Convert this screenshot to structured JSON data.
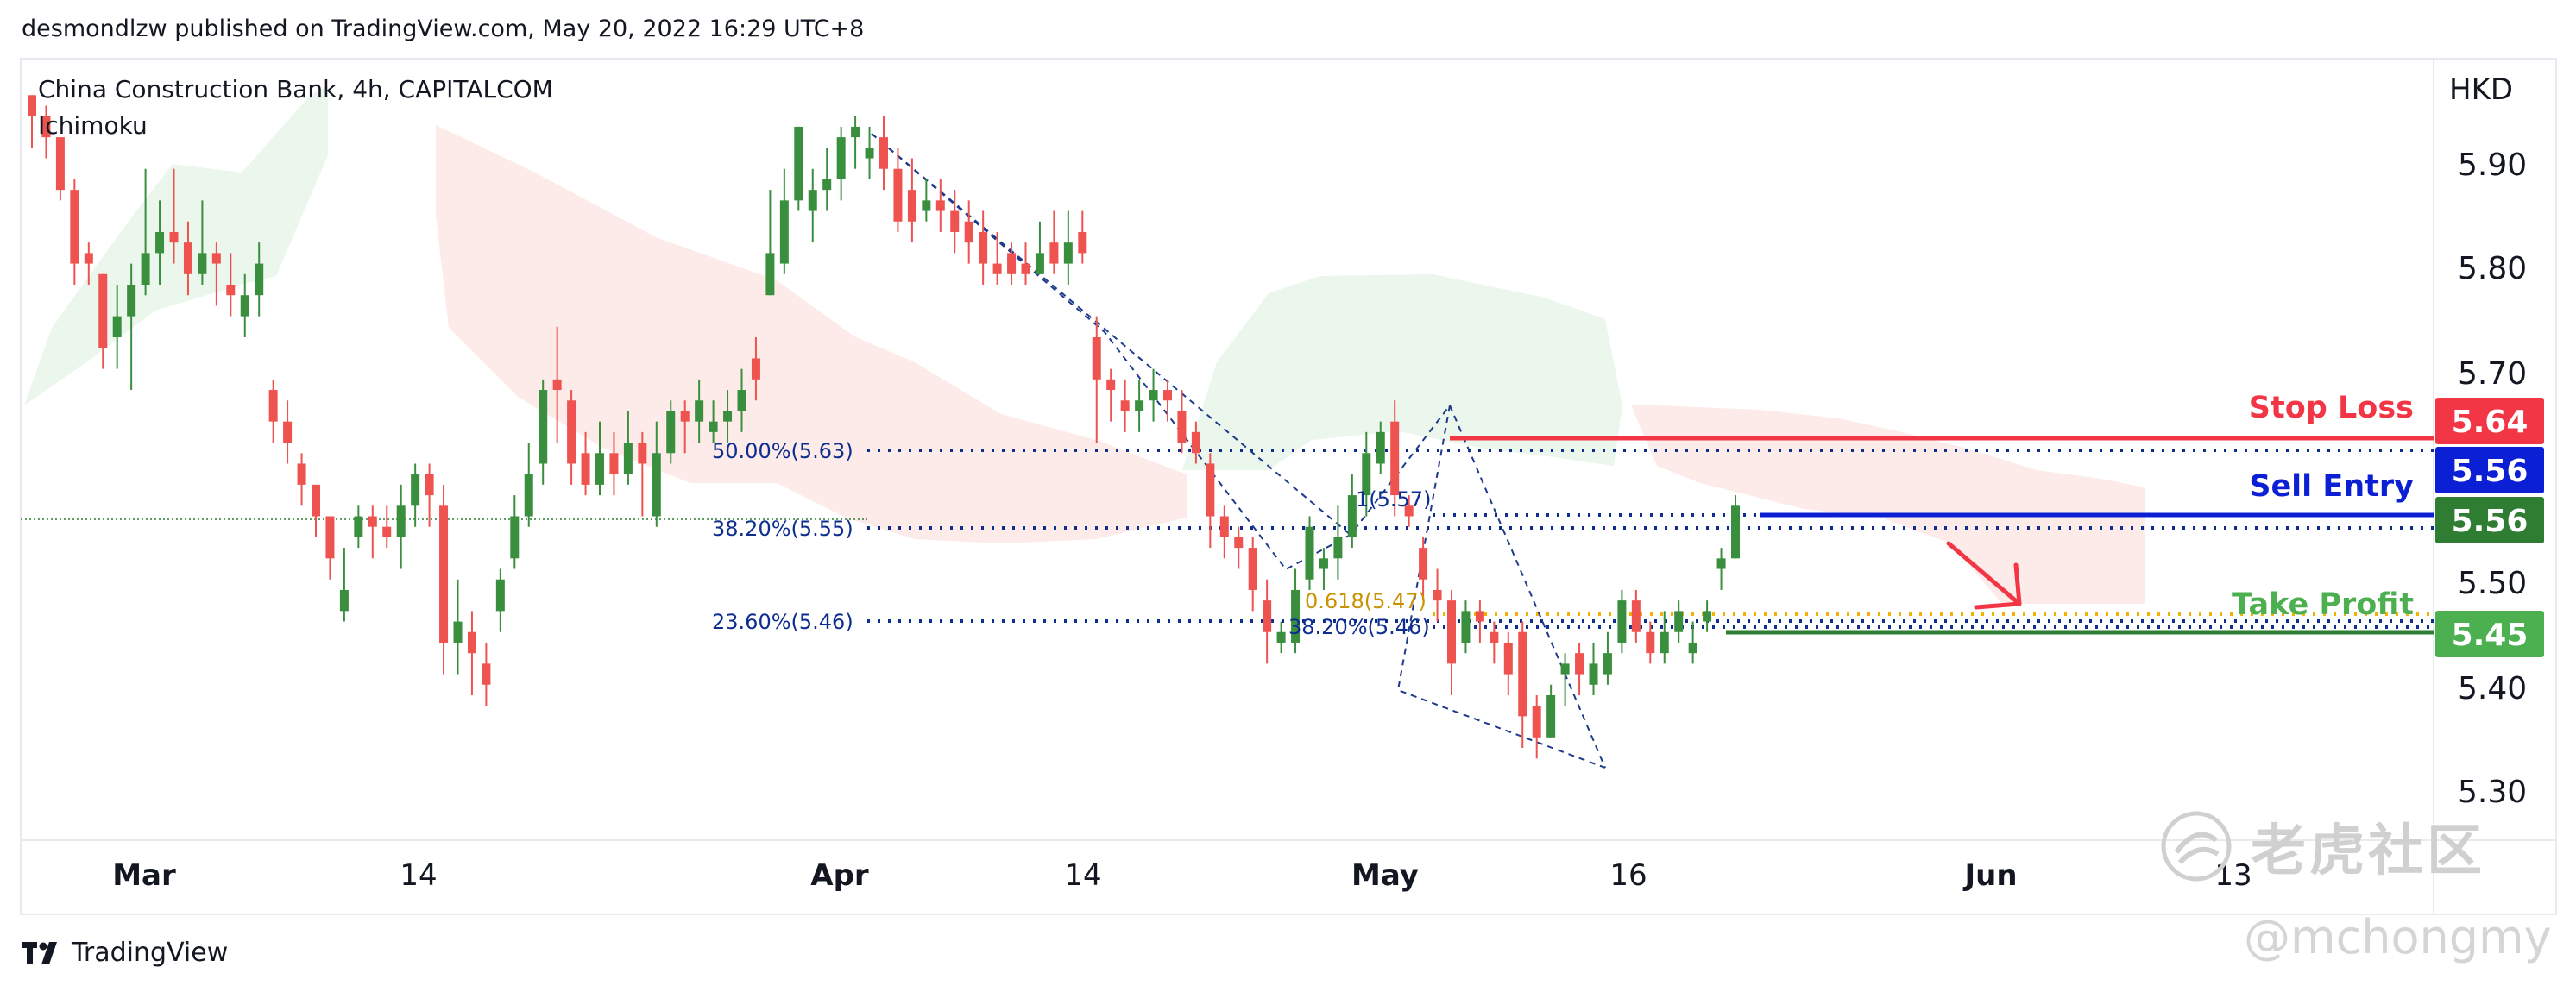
{
  "header": {
    "publisher_line": "desmondlzw published on TradingView.com, May 20, 2022 16:29 UTC+8"
  },
  "footer": {
    "brand": "TradingView"
  },
  "watermark": {
    "brand": "老虎社区",
    "handle": "@mchongmy"
  },
  "chart_data": {
    "type": "candlestick",
    "title": "China Construction Bank, 4h, CAPITALCOM",
    "indicator": "Ichimoku",
    "currency": "HKD",
    "ylim": [
      5.262,
      5.965
    ],
    "x_ticks": [
      "Mar",
      "14",
      "Apr",
      "14",
      "May",
      "16",
      "Jun",
      "13"
    ],
    "y_ticks": [
      "5.90",
      "5.80",
      "5.70",
      "5.50",
      "5.40",
      "5.30"
    ],
    "levels": {
      "stop_loss": {
        "label": "Stop Loss",
        "value": "5.64",
        "color": "#f23645"
      },
      "sell_entry": {
        "label": "Sell Entry",
        "value": "5.56",
        "color": "#0b1fd4"
      },
      "last_price": {
        "value": "5.56",
        "color": "#2e7d32"
      },
      "take_profit": {
        "label": "Take Profit",
        "value": "5.45",
        "color": "#4caf50"
      }
    },
    "fib_labels": [
      {
        "text": "50.00%(5.63)",
        "price": 5.63
      },
      {
        "text": "38.20%(5.55)",
        "price": 5.55
      },
      {
        "text": "23.60%(5.46)",
        "price": 5.46
      },
      {
        "text": "1(5.57)",
        "price": 5.57
      },
      {
        "text": "0.618(5.47)",
        "price": 5.47
      },
      {
        "text": "38.20%(5.46)",
        "price": 5.46
      }
    ],
    "candles": [
      [
        5.95,
        5.93,
        5.95,
        5.9
      ],
      [
        5.93,
        5.91,
        5.94,
        5.89
      ],
      [
        5.91,
        5.86,
        5.91,
        5.85
      ],
      [
        5.86,
        5.79,
        5.87,
        5.77
      ],
      [
        5.8,
        5.79,
        5.81,
        5.77
      ],
      [
        5.78,
        5.71,
        5.78,
        5.69
      ],
      [
        5.72,
        5.74,
        5.77,
        5.69
      ],
      [
        5.74,
        5.77,
        5.79,
        5.67
      ],
      [
        5.77,
        5.8,
        5.88,
        5.76
      ],
      [
        5.8,
        5.82,
        5.85,
        5.77
      ],
      [
        5.82,
        5.81,
        5.88,
        5.79
      ],
      [
        5.81,
        5.78,
        5.83,
        5.76
      ],
      [
        5.78,
        5.8,
        5.85,
        5.77
      ],
      [
        5.8,
        5.79,
        5.81,
        5.75
      ],
      [
        5.77,
        5.76,
        5.8,
        5.74
      ],
      [
        5.74,
        5.76,
        5.78,
        5.72
      ],
      [
        5.76,
        5.79,
        5.81,
        5.74
      ],
      [
        5.67,
        5.64,
        5.68,
        5.62
      ],
      [
        5.64,
        5.62,
        5.66,
        5.6
      ],
      [
        5.6,
        5.58,
        5.61,
        5.56
      ],
      [
        5.58,
        5.55,
        5.58,
        5.53
      ],
      [
        5.55,
        5.51,
        5.55,
        5.49
      ],
      [
        5.46,
        5.48,
        5.52,
        5.45
      ],
      [
        5.53,
        5.55,
        5.56,
        5.52
      ],
      [
        5.55,
        5.54,
        5.56,
        5.51
      ],
      [
        5.54,
        5.53,
        5.56,
        5.52
      ],
      [
        5.53,
        5.56,
        5.58,
        5.5
      ],
      [
        5.56,
        5.59,
        5.6,
        5.54
      ],
      [
        5.59,
        5.57,
        5.6,
        5.54
      ],
      [
        5.56,
        5.43,
        5.58,
        5.4
      ],
      [
        5.43,
        5.45,
        5.49,
        5.4
      ],
      [
        5.44,
        5.42,
        5.46,
        5.38
      ],
      [
        5.41,
        5.39,
        5.43,
        5.37
      ],
      [
        5.46,
        5.49,
        5.5,
        5.44
      ],
      [
        5.51,
        5.55,
        5.57,
        5.5
      ],
      [
        5.55,
        5.59,
        5.62,
        5.54
      ],
      [
        5.6,
        5.67,
        5.68,
        5.58
      ],
      [
        5.68,
        5.67,
        5.73,
        5.62
      ],
      [
        5.66,
        5.6,
        5.67,
        5.58
      ],
      [
        5.61,
        5.58,
        5.63,
        5.57
      ],
      [
        5.58,
        5.61,
        5.64,
        5.57
      ],
      [
        5.61,
        5.59,
        5.63,
        5.57
      ],
      [
        5.59,
        5.62,
        5.65,
        5.58
      ],
      [
        5.62,
        5.6,
        5.63,
        5.55
      ],
      [
        5.55,
        5.61,
        5.64,
        5.54
      ],
      [
        5.61,
        5.65,
        5.66,
        5.6
      ],
      [
        5.65,
        5.64,
        5.66,
        5.61
      ],
      [
        5.64,
        5.66,
        5.68,
        5.62
      ],
      [
        5.63,
        5.64,
        5.66,
        5.62
      ],
      [
        5.64,
        5.65,
        5.67,
        5.62
      ],
      [
        5.65,
        5.67,
        5.69,
        5.63
      ],
      [
        5.7,
        5.68,
        5.72,
        5.66
      ],
      [
        5.76,
        5.8,
        5.86,
        5.76
      ],
      [
        5.79,
        5.85,
        5.88,
        5.78
      ],
      [
        5.85,
        5.92,
        5.92,
        5.84
      ],
      [
        5.84,
        5.86,
        5.88,
        5.81
      ],
      [
        5.86,
        5.87,
        5.9,
        5.84
      ],
      [
        5.87,
        5.91,
        5.92,
        5.85
      ],
      [
        5.91,
        5.92,
        5.93,
        5.88
      ],
      [
        5.89,
        5.9,
        5.92,
        5.87
      ],
      [
        5.91,
        5.88,
        5.93,
        5.86
      ],
      [
        5.88,
        5.83,
        5.9,
        5.82
      ],
      [
        5.86,
        5.83,
        5.89,
        5.81
      ],
      [
        5.84,
        5.85,
        5.87,
        5.83
      ],
      [
        5.85,
        5.84,
        5.87,
        5.82
      ],
      [
        5.84,
        5.82,
        5.86,
        5.8
      ],
      [
        5.83,
        5.81,
        5.85,
        5.79
      ],
      [
        5.82,
        5.79,
        5.84,
        5.77
      ],
      [
        5.79,
        5.78,
        5.82,
        5.77
      ],
      [
        5.8,
        5.78,
        5.81,
        5.77
      ],
      [
        5.79,
        5.78,
        5.81,
        5.77
      ],
      [
        5.78,
        5.8,
        5.83,
        5.78
      ],
      [
        5.81,
        5.79,
        5.84,
        5.78
      ],
      [
        5.79,
        5.81,
        5.84,
        5.77
      ],
      [
        5.82,
        5.8,
        5.84,
        5.79
      ],
      [
        5.72,
        5.68,
        5.74,
        5.62
      ],
      [
        5.68,
        5.67,
        5.69,
        5.64
      ],
      [
        5.66,
        5.65,
        5.68,
        5.63
      ],
      [
        5.65,
        5.66,
        5.68,
        5.63
      ],
      [
        5.66,
        5.67,
        5.69,
        5.64
      ],
      [
        5.67,
        5.66,
        5.68,
        5.64
      ],
      [
        5.65,
        5.62,
        5.67,
        5.61
      ],
      [
        5.63,
        5.61,
        5.64,
        5.6
      ],
      [
        5.6,
        5.55,
        5.61,
        5.52
      ],
      [
        5.55,
        5.53,
        5.56,
        5.51
      ],
      [
        5.53,
        5.52,
        5.54,
        5.5
      ],
      [
        5.52,
        5.48,
        5.53,
        5.46
      ],
      [
        5.47,
        5.44,
        5.49,
        5.41
      ],
      [
        5.43,
        5.44,
        5.45,
        5.42
      ],
      [
        5.43,
        5.48,
        5.5,
        5.42
      ],
      [
        5.49,
        5.54,
        5.55,
        5.48
      ],
      [
        5.5,
        5.51,
        5.52,
        5.48
      ],
      [
        5.51,
        5.53,
        5.56,
        5.49
      ],
      [
        5.53,
        5.57,
        5.59,
        5.52
      ],
      [
        5.57,
        5.61,
        5.63,
        5.55
      ],
      [
        5.6,
        5.63,
        5.64,
        5.59
      ],
      [
        5.64,
        5.57,
        5.66,
        5.55
      ],
      [
        5.56,
        5.55,
        5.57,
        5.54
      ],
      [
        5.52,
        5.49,
        5.53,
        5.47
      ],
      [
        5.48,
        5.47,
        5.5,
        5.45
      ],
      [
        5.47,
        5.41,
        5.48,
        5.38
      ],
      [
        5.43,
        5.46,
        5.47,
        5.42
      ],
      [
        5.46,
        5.45,
        5.47,
        5.43
      ],
      [
        5.44,
        5.43,
        5.45,
        5.41
      ],
      [
        5.43,
        5.4,
        5.44,
        5.38
      ],
      [
        5.44,
        5.36,
        5.45,
        5.33
      ],
      [
        5.37,
        5.34,
        5.38,
        5.32
      ],
      [
        5.34,
        5.38,
        5.39,
        5.34
      ],
      [
        5.4,
        5.41,
        5.42,
        5.37
      ],
      [
        5.42,
        5.4,
        5.43,
        5.38
      ],
      [
        5.39,
        5.41,
        5.43,
        5.38
      ],
      [
        5.4,
        5.42,
        5.44,
        5.39
      ],
      [
        5.43,
        5.47,
        5.48,
        5.42
      ],
      [
        5.47,
        5.44,
        5.48,
        5.43
      ],
      [
        5.44,
        5.42,
        5.45,
        5.41
      ],
      [
        5.42,
        5.44,
        5.46,
        5.41
      ],
      [
        5.44,
        5.46,
        5.47,
        5.43
      ],
      [
        5.42,
        5.43,
        5.45,
        5.41
      ],
      [
        5.45,
        5.46,
        5.47,
        5.44
      ],
      [
        5.5,
        5.51,
        5.52,
        5.48
      ],
      [
        5.51,
        5.56,
        5.57,
        5.51
      ]
    ]
  }
}
